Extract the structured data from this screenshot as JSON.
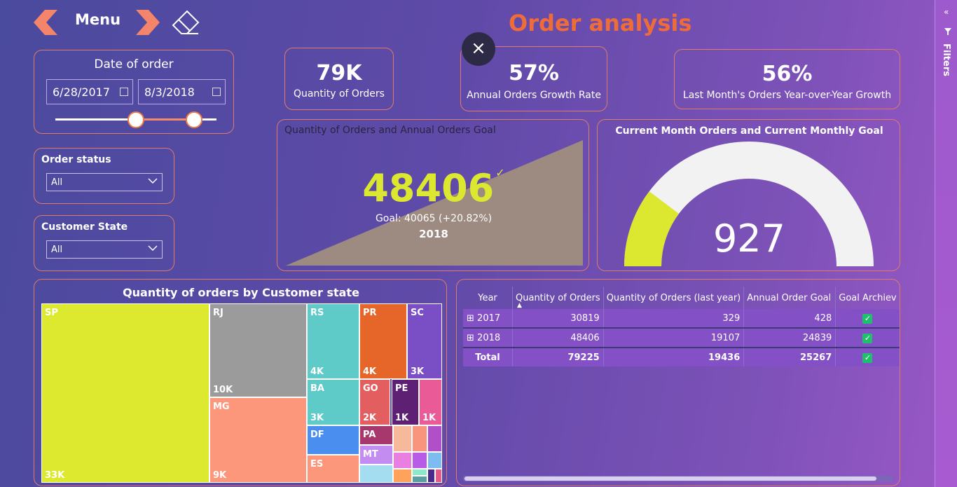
{
  "header": {
    "menu_label": "Menu",
    "title": "Order analysis",
    "close": "×"
  },
  "filters_pane": {
    "label": "Filters",
    "collapse": "«"
  },
  "date_slicer": {
    "title": "Date of order",
    "start": "6/28/2017",
    "end": "8/3/2018"
  },
  "order_status": {
    "title": "Order status",
    "value": "All"
  },
  "customer_state": {
    "title": "Customer State",
    "value": "All"
  },
  "kpis": [
    {
      "value": "79K",
      "label": "Quantity of Orders"
    },
    {
      "value": "57%",
      "label": "Annual Orders Growth Rate"
    },
    {
      "value": "56%",
      "label": "Last Month's Orders Year-over-Year Growth"
    }
  ],
  "annual_goal": {
    "title": "Quantity of Orders and Annual Orders Goal",
    "value": "48406",
    "check": "✓",
    "goal": "Goal: 40065 (+20.82%)",
    "year": "2018"
  },
  "monthly_gauge": {
    "title": "Current Month Orders and Current Monthly Goal",
    "value": "927",
    "fraction": 0.205
  },
  "treemap": {
    "title": "Quantity of orders by Customer state",
    "cells": [
      {
        "code": "SP",
        "value": "33K",
        "color": "#dce92e"
      },
      {
        "code": "RJ",
        "value": "10K",
        "color": "#9b9b9b"
      },
      {
        "code": "MG",
        "value": "9K",
        "color": "#fd977b"
      },
      {
        "code": "RS",
        "value": "4K",
        "color": "#5ecbc8"
      },
      {
        "code": "PR",
        "value": "4K",
        "color": "#e6662a"
      },
      {
        "code": "SC",
        "value": "3K",
        "color": "#7a4ec4"
      },
      {
        "code": "BA",
        "value": "3K",
        "color": "#5ecbc8"
      },
      {
        "code": "GO",
        "value": "2K",
        "color": "#e35f5f"
      },
      {
        "code": "PE",
        "value": "1K",
        "color": "#5e2072"
      },
      {
        "code": "",
        "value": "1K",
        "color": "#ea5a96"
      },
      {
        "code": "DF",
        "value": "",
        "color": "#4a8fef"
      },
      {
        "code": "ES",
        "value": "",
        "color": "#fd977b"
      },
      {
        "code": "PA",
        "value": "",
        "color": "#a6386e"
      },
      {
        "code": "MT",
        "value": "",
        "color": "#c38cf0"
      }
    ],
    "small_colors": [
      "#a5ddf0",
      "#f6b99c",
      "#f9957c",
      "#b14fc8",
      "#e97fe0",
      "#b85ce8",
      "#7cbcf0",
      "#ffa25c",
      "#8fe8c8",
      "#4b2a8a",
      "#e25c86",
      "#5aa0a0",
      "#f48c5c",
      "#8a3a3a"
    ]
  },
  "table": {
    "columns": [
      "Year",
      "Quantity of Orders",
      "Quantity of Orders (last year)",
      "Annual Order Goal",
      "Goal Archiev"
    ],
    "rows": [
      {
        "expand": "⊞",
        "year": "2017",
        "qty": "30819",
        "last": "329",
        "goal": "428",
        "ok": "✓"
      },
      {
        "expand": "⊞",
        "year": "2018",
        "qty": "48406",
        "last": "19107",
        "goal": "24839",
        "ok": "✓"
      }
    ],
    "total": {
      "label": "Total",
      "qty": "79225",
      "last": "19436",
      "goal": "25267",
      "ok": "✓"
    }
  }
}
